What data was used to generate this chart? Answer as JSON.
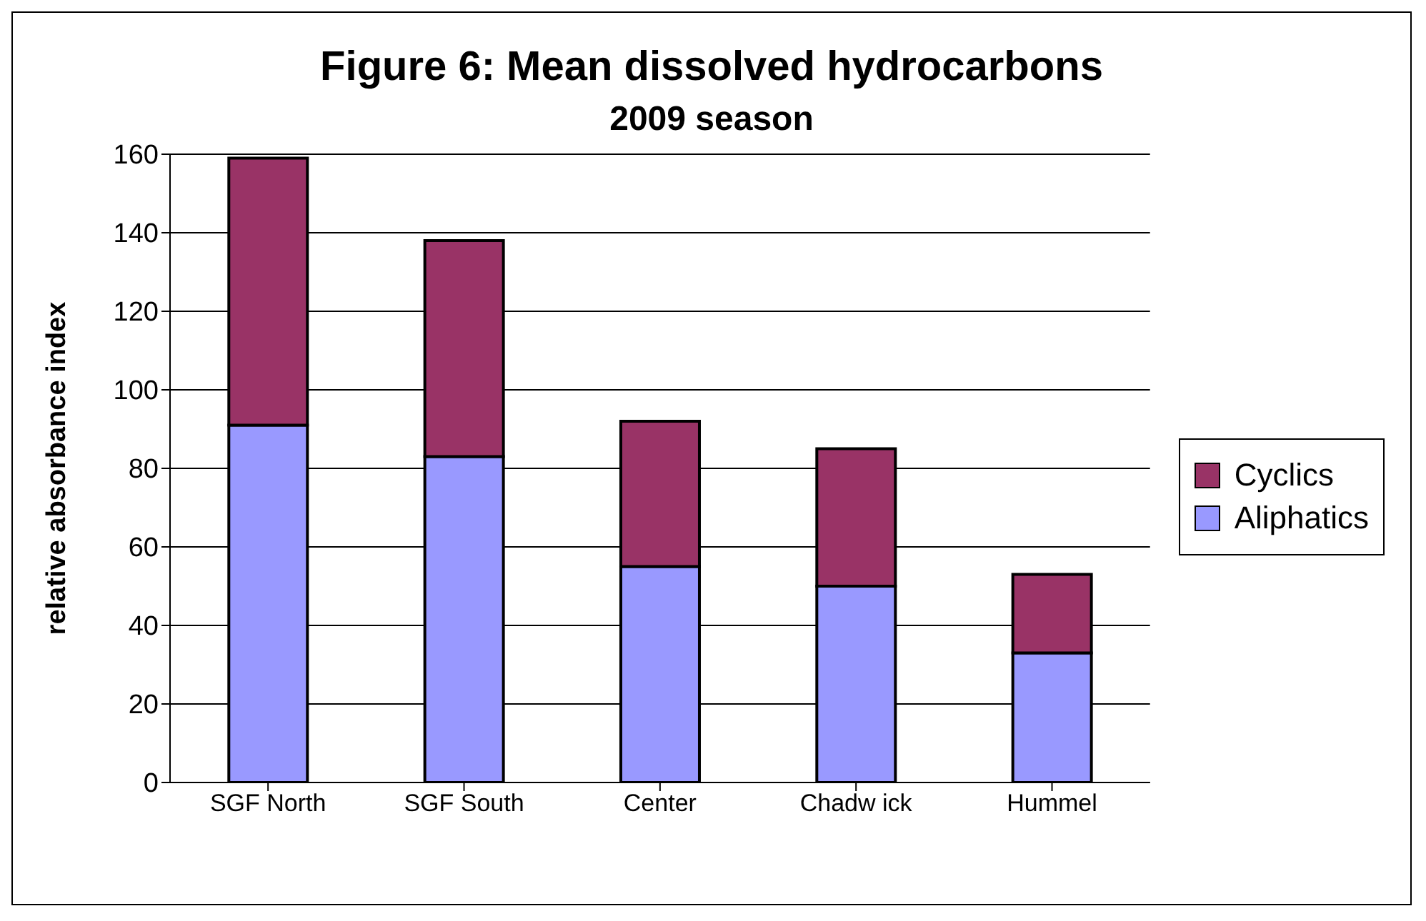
{
  "chart_data": {
    "type": "bar",
    "title": "Figure 6: Mean dissolved hydrocarbons",
    "subtitle": "2009 season",
    "ylabel": "relative absorbance index",
    "categories": [
      "SGF North",
      "SGF South",
      "Center",
      "Chadw ick",
      "Hummel"
    ],
    "series": [
      {
        "name": "Aliphatics",
        "color": "#9999ff",
        "values": [
          91,
          83,
          55,
          50,
          33
        ]
      },
      {
        "name": "Cyclics",
        "color": "#993366",
        "values": [
          68,
          55,
          37,
          35,
          20
        ]
      }
    ],
    "stacked": true,
    "ylim": [
      0,
      160
    ],
    "yticks": [
      0,
      20,
      40,
      60,
      80,
      100,
      120,
      140,
      160
    ],
    "grid": "y",
    "legend": "right"
  }
}
